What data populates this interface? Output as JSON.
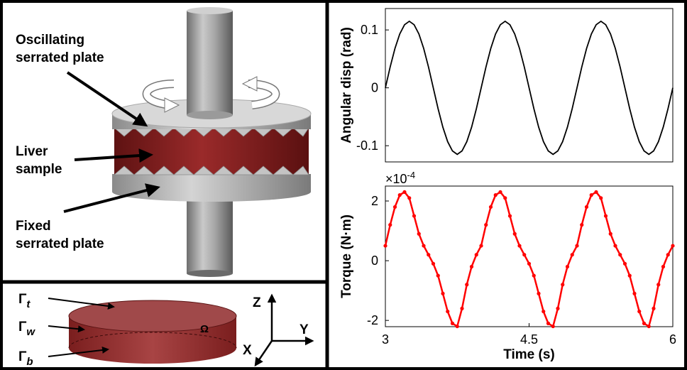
{
  "diagram": {
    "top": {
      "oscillating": [
        "Oscillating",
        "serrated plate"
      ],
      "liver": [
        "Liver",
        "sample"
      ],
      "fixed": [
        "Fixed",
        "serrated plate"
      ]
    },
    "bottom": {
      "gamma_t": {
        "symbol": "Γ",
        "subscript": "t"
      },
      "gamma_w": {
        "symbol": "Γ",
        "subscript": "w"
      },
      "gamma_b": {
        "symbol": "Γ",
        "subscript": "b"
      },
      "omega": "Ω",
      "axis_z": "Z",
      "axis_y": "Y",
      "axis_x": "X"
    }
  },
  "chart_data": [
    {
      "type": "line",
      "ylabel": "Angular disp (rad)",
      "color": "#000000",
      "xlim": [
        3,
        6
      ],
      "ylim": [
        -0.128,
        0.137
      ],
      "yticks": [
        0.1,
        0,
        -0.1
      ],
      "x": [
        3,
        3.05,
        3.1,
        3.15,
        3.2,
        3.25,
        3.3,
        3.35,
        3.4,
        3.45,
        3.5,
        3.55,
        3.6,
        3.65,
        3.7,
        3.75,
        3.8,
        3.85,
        3.9,
        3.95,
        4,
        4.05,
        4.1,
        4.15,
        4.2,
        4.25,
        4.3,
        4.35,
        4.4,
        4.45,
        4.5,
        4.55,
        4.6,
        4.65,
        4.7,
        4.75,
        4.8,
        4.85,
        4.9,
        4.95,
        5,
        5.05,
        5.1,
        5.15,
        5.2,
        5.25,
        5.3,
        5.35,
        5.4,
        5.45,
        5.5,
        5.55,
        5.6,
        5.65,
        5.7,
        5.75,
        5.8,
        5.85,
        5.9,
        5.95,
        6
      ],
      "values": [
        0,
        0.036,
        0.068,
        0.093,
        0.109,
        0.115,
        0.109,
        0.093,
        0.068,
        0.036,
        0,
        -0.036,
        -0.068,
        -0.093,
        -0.109,
        -0.115,
        -0.109,
        -0.093,
        -0.068,
        -0.036,
        0,
        0.036,
        0.068,
        0.093,
        0.109,
        0.115,
        0.109,
        0.093,
        0.068,
        0.036,
        0,
        -0.036,
        -0.068,
        -0.093,
        -0.109,
        -0.115,
        -0.109,
        -0.093,
        -0.068,
        -0.036,
        0,
        0.036,
        0.068,
        0.093,
        0.109,
        0.115,
        0.109,
        0.093,
        0.068,
        0.036,
        0,
        -0.036,
        -0.068,
        -0.093,
        -0.109,
        -0.115,
        -0.109,
        -0.093,
        -0.068,
        -0.036,
        0
      ]
    },
    {
      "type": "line",
      "xlabel": "Time (s)",
      "ylabel": "Torque (N·m)",
      "y_multiplier": "×10",
      "y_multiplier_exponent": "-4",
      "color": "#ff0000",
      "markers": true,
      "xlim": [
        3,
        6
      ],
      "ylim": [
        -2.21,
        2.5
      ],
      "yticks": [
        2,
        0,
        -2
      ],
      "xticks": [
        3,
        4.5,
        6
      ],
      "x": [
        3,
        3.05,
        3.1,
        3.15,
        3.2,
        3.25,
        3.3,
        3.35,
        3.4,
        3.45,
        3.5,
        3.55,
        3.6,
        3.65,
        3.7,
        3.75,
        3.8,
        3.85,
        3.9,
        3.95,
        4,
        4.05,
        4.1,
        4.15,
        4.2,
        4.25,
        4.3,
        4.35,
        4.4,
        4.45,
        4.5,
        4.55,
        4.6,
        4.65,
        4.7,
        4.75,
        4.8,
        4.85,
        4.9,
        4.95,
        5,
        5.05,
        5.1,
        5.15,
        5.2,
        5.25,
        5.3,
        5.35,
        5.4,
        5.45,
        5.5,
        5.55,
        5.6,
        5.65,
        5.7,
        5.75,
        5.8,
        5.85,
        5.9,
        5.95,
        6
      ],
      "values": [
        0.5,
        1.2,
        1.8,
        2.2,
        2.3,
        2.1,
        1.5,
        0.9,
        0.5,
        0.2,
        -0.1,
        -0.5,
        -1.1,
        -1.7,
        -2.1,
        -2.2,
        -1.6,
        -0.8,
        -0.2,
        0.2,
        0.5,
        1.2,
        1.8,
        2.2,
        2.3,
        2.1,
        1.5,
        0.9,
        0.5,
        0.2,
        -0.1,
        -0.5,
        -1.1,
        -1.7,
        -2.1,
        -2.2,
        -1.6,
        -0.8,
        -0.2,
        0.2,
        0.5,
        1.2,
        1.8,
        2.2,
        2.3,
        2.1,
        1.5,
        0.9,
        0.5,
        0.2,
        -0.1,
        -0.5,
        -1.1,
        -1.7,
        -2.1,
        -2.2,
        -1.6,
        -0.8,
        -0.2,
        0.2,
        0.5
      ]
    }
  ]
}
